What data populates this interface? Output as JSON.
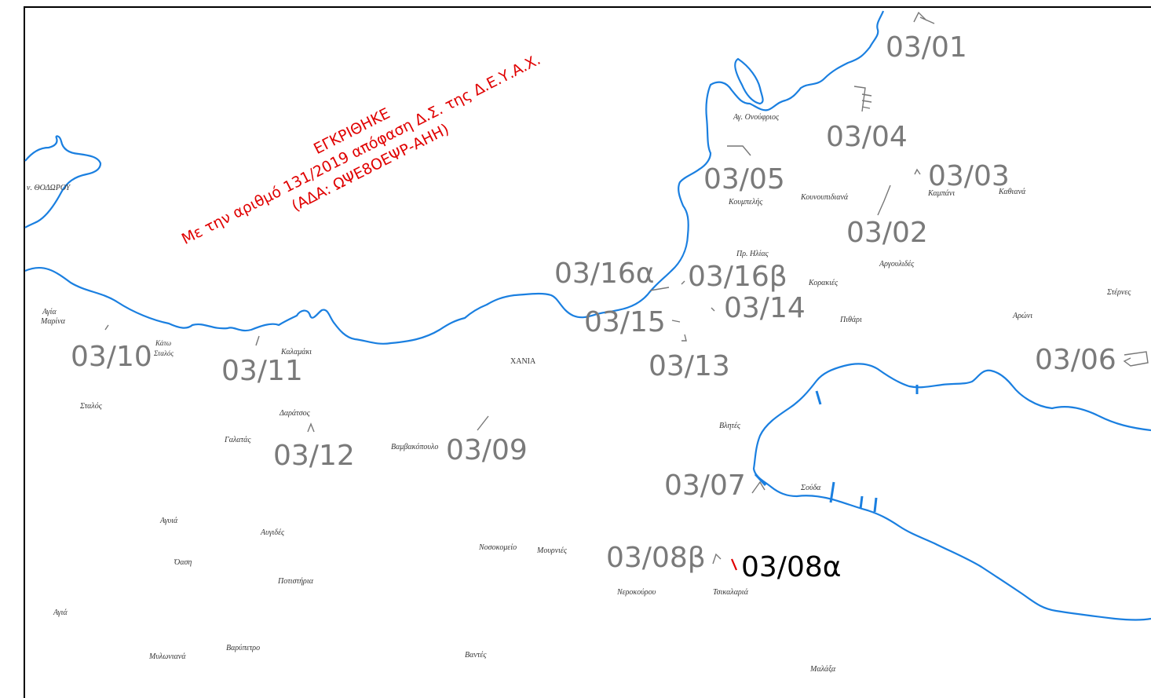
{
  "approval": {
    "title": "ΕΓΚΡΙΘΗΚΕ",
    "decision": "Με την αριθμό 131/2019 απόφαση Δ.Σ. της Δ.Ε.Υ.Α.Χ.",
    "ada": "(ΑΔΑ: ΩΨΕ8ΟΕΨΡ-ΑΗΗ)",
    "color": "#e00000"
  },
  "colors": {
    "coastline": "#1a7fe0",
    "code": "#7a7a7a",
    "highlight_code": "#000000",
    "highlight_marker": "#e00000"
  },
  "codes": {
    "c0301": "03/01",
    "c0302": "03/02",
    "c0303": "03/03",
    "c0304": "03/04",
    "c0305": "03/05",
    "c0306": "03/06",
    "c0307": "03/07",
    "c0308a": "03/08α",
    "c0308b": "03/08β",
    "c0309": "03/09",
    "c0310": "03/10",
    "c0311": "03/11",
    "c0312": "03/12",
    "c0313": "03/13",
    "c0314": "03/14",
    "c0315": "03/15",
    "c0316a": "03/16α",
    "c0316b": "03/16β"
  },
  "places": {
    "ag_onoufrios": "Αγ. Ονούφριος",
    "n_theodorou": "ν. ΘΟΔΩΡΟΥ",
    "koumpelis": "Κουμπελής",
    "kounoupidiana": "Κουνουπιδιανά",
    "kampani": "Καμπάνι",
    "kathiana": "Καθιανά",
    "pr_ilias": "Πρ. Ηλίας",
    "argoulides": "Αργουλιδές",
    "korakies": "Κορακιές",
    "sternes": "Στέρνες",
    "agia_marina": "Αγία",
    "agia_marina2": "Μαρίνα",
    "pithari": "Πιθάρι",
    "aroni": "Αρώνι",
    "kato": "Κάτω",
    "stalos_k": "Σταλός",
    "kalamaki": "Καλαμάκι",
    "chania": "ΧΑΝΙΑ",
    "stalos": "Σταλός",
    "daratsos": "Δαράτσος",
    "galatas": "Γαλατάς",
    "vamvakopoulo": "Βαμβακόπουλο",
    "vlites": "Βλητές",
    "souda": "Σούδα",
    "agyia": "Αγυιά",
    "avgides": "Αυγιδές",
    "nosokomeio": "Νοσοκομείο",
    "mournies": "Μουρνιές",
    "oasi": "Όαση",
    "potistiria": "Ποτιστήρια",
    "nerokouros": "Νεροκούρου",
    "tsikalaria": "Τσικαλαριά",
    "agia": "Αγιά",
    "mylonianá": "Μυλωνιανά",
    "varypetro": "Βαρύπετρο",
    "vantes": "Βαντές",
    "malaxa": "Μαλάξα"
  }
}
